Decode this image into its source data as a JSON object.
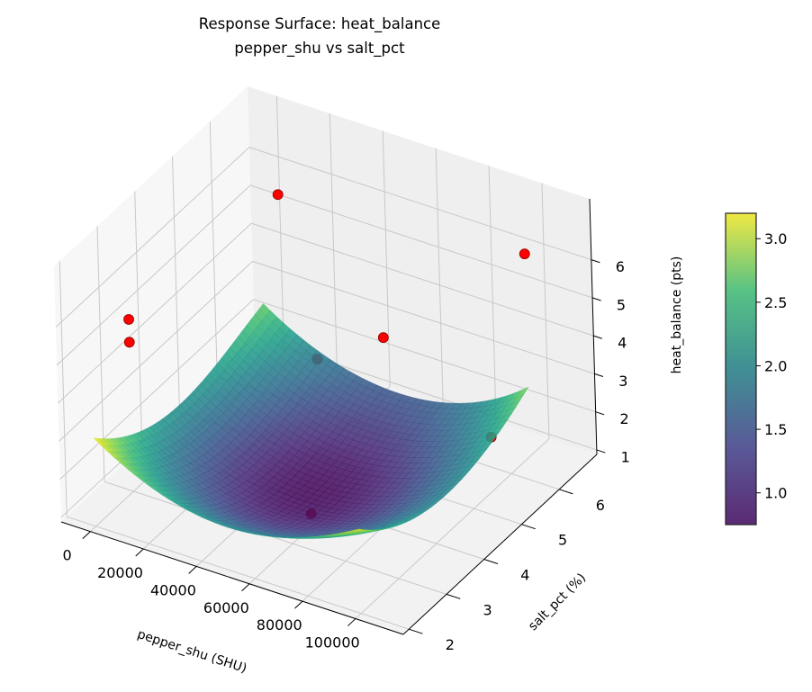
{
  "chart_data": {
    "type": "surface",
    "title": "Response Surface: heat_balance",
    "subtitle": "pepper_shu vs salt_pct",
    "xlabel": "pepper_shu (SHU)",
    "ylabel": "salt_pct (%)",
    "zlabel": "heat_balance (pts)",
    "xlim": [
      -11000,
      118000
    ],
    "ylim": [
      1.85,
      7.0
    ],
    "zlim": [
      0.88,
      7.6
    ],
    "xticks": [
      0,
      20000,
      40000,
      60000,
      80000,
      100000
    ],
    "yticks": [
      2,
      3,
      4,
      5,
      6
    ],
    "zticks": [
      1,
      2,
      3,
      4,
      5,
      6
    ],
    "grid": true,
    "colormap": "viridis",
    "surface": {
      "x": [
        0,
        25000,
        50000,
        75000,
        100000
      ],
      "y": [
        2,
        3.125,
        4.25,
        5.375,
        6.5
      ],
      "z": [
        [
          3.2,
          2.3,
          2.0,
          2.3,
          3.1
        ],
        [
          2.3,
          1.4,
          1.1,
          1.4,
          2.2
        ],
        [
          2.0,
          1.1,
          0.8,
          1.1,
          1.9
        ],
        [
          2.2,
          1.3,
          1.0,
          1.3,
          2.1
        ],
        [
          2.6,
          1.7,
          1.4,
          1.7,
          2.7
        ]
      ]
    },
    "points": [
      {
        "x": 17000,
        "y": 5.8,
        "z": 6.5
      },
      {
        "x": 100000,
        "y": 6.5,
        "z": 6.2
      },
      {
        "x": 0,
        "y": 3.0,
        "z": 5.4
      },
      {
        "x": 0,
        "y": 3.0,
        "z": 4.8
      },
      {
        "x": 60000,
        "y": 5.5,
        "z": 4.0
      },
      {
        "x": 20000,
        "y": 6.5,
        "z": 1.6
      },
      {
        "x": 100000,
        "y": 5.5,
        "z": 2.3
      },
      {
        "x": 60000,
        "y": 3.5,
        "z": 1.2
      }
    ],
    "point_color": "#ff0000",
    "colorbar": {
      "range": [
        0.75,
        3.2
      ],
      "ticks": [
        "1.0",
        "1.5",
        "2.0",
        "2.5",
        "3.0"
      ]
    }
  }
}
